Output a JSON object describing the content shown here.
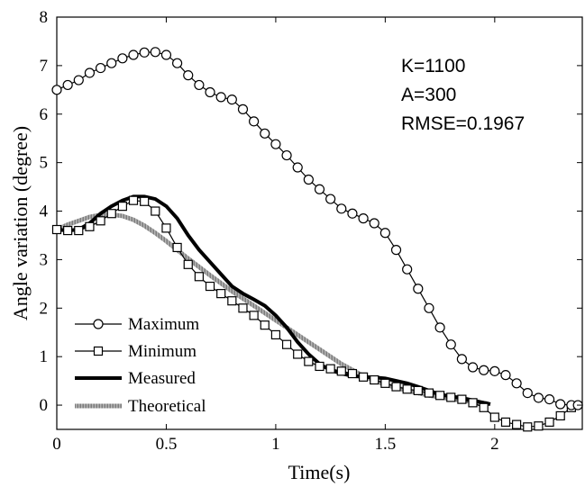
{
  "chart_data": {
    "type": "line",
    "title": "",
    "xlabel": "Time(s)",
    "ylabel": "Angle variation (degree)",
    "xlim": [
      0,
      2.4
    ],
    "ylim": [
      -0.5,
      8
    ],
    "xticks": [
      0,
      0.5,
      1,
      1.5,
      2
    ],
    "xtick_labels": [
      "0",
      "0.5",
      "1",
      "1.5",
      "2"
    ],
    "yticks": [
      0,
      1,
      2,
      3,
      4,
      5,
      6,
      7,
      8
    ],
    "ytick_labels": [
      "0",
      "1",
      "2",
      "3",
      "4",
      "5",
      "6",
      "7",
      "8"
    ],
    "grid": false,
    "legend_position": "bottom-left",
    "annotations": [
      "K=1100",
      "A=300",
      "RMSE=0.1967"
    ],
    "series": [
      {
        "name": "Maximum",
        "style": "thin-line-circle-markers",
        "color": "#000000",
        "points": [
          [
            0,
            6.5
          ],
          [
            0.05,
            6.6
          ],
          [
            0.1,
            6.7
          ],
          [
            0.15,
            6.85
          ],
          [
            0.2,
            6.95
          ],
          [
            0.25,
            7.05
          ],
          [
            0.3,
            7.15
          ],
          [
            0.35,
            7.22
          ],
          [
            0.4,
            7.27
          ],
          [
            0.45,
            7.28
          ],
          [
            0.5,
            7.22
          ],
          [
            0.55,
            7.05
          ],
          [
            0.6,
            6.8
          ],
          [
            0.65,
            6.6
          ],
          [
            0.7,
            6.45
          ],
          [
            0.75,
            6.35
          ],
          [
            0.8,
            6.3
          ],
          [
            0.85,
            6.1
          ],
          [
            0.9,
            5.85
          ],
          [
            0.95,
            5.6
          ],
          [
            1.0,
            5.38
          ],
          [
            1.05,
            5.15
          ],
          [
            1.1,
            4.9
          ],
          [
            1.15,
            4.65
          ],
          [
            1.2,
            4.45
          ],
          [
            1.25,
            4.25
          ],
          [
            1.3,
            4.05
          ],
          [
            1.35,
            3.95
          ],
          [
            1.4,
            3.85
          ],
          [
            1.45,
            3.75
          ],
          [
            1.5,
            3.55
          ],
          [
            1.55,
            3.2
          ],
          [
            1.6,
            2.8
          ],
          [
            1.65,
            2.4
          ],
          [
            1.7,
            2.0
          ],
          [
            1.75,
            1.6
          ],
          [
            1.8,
            1.25
          ],
          [
            1.85,
            0.95
          ],
          [
            1.9,
            0.78
          ],
          [
            1.95,
            0.72
          ],
          [
            2.0,
            0.7
          ],
          [
            2.05,
            0.62
          ],
          [
            2.1,
            0.45
          ],
          [
            2.15,
            0.25
          ],
          [
            2.2,
            0.15
          ],
          [
            2.25,
            0.12
          ],
          [
            2.3,
            0.02
          ],
          [
            2.35,
            0.0
          ],
          [
            2.38,
            0.0
          ]
        ]
      },
      {
        "name": "Minimum",
        "style": "thin-line-square-markers",
        "color": "#000000",
        "points": [
          [
            0,
            3.62
          ],
          [
            0.05,
            3.6
          ],
          [
            0.1,
            3.6
          ],
          [
            0.15,
            3.68
          ],
          [
            0.2,
            3.8
          ],
          [
            0.25,
            3.95
          ],
          [
            0.3,
            4.1
          ],
          [
            0.35,
            4.22
          ],
          [
            0.4,
            4.2
          ],
          [
            0.45,
            4.0
          ],
          [
            0.5,
            3.65
          ],
          [
            0.55,
            3.25
          ],
          [
            0.6,
            2.9
          ],
          [
            0.65,
            2.65
          ],
          [
            0.7,
            2.45
          ],
          [
            0.75,
            2.3
          ],
          [
            0.8,
            2.15
          ],
          [
            0.85,
            2.0
          ],
          [
            0.9,
            1.85
          ],
          [
            0.95,
            1.65
          ],
          [
            1.0,
            1.45
          ],
          [
            1.05,
            1.25
          ],
          [
            1.1,
            1.05
          ],
          [
            1.15,
            0.9
          ],
          [
            1.2,
            0.8
          ],
          [
            1.25,
            0.75
          ],
          [
            1.3,
            0.7
          ],
          [
            1.35,
            0.65
          ],
          [
            1.4,
            0.58
          ],
          [
            1.45,
            0.52
          ],
          [
            1.5,
            0.45
          ],
          [
            1.55,
            0.38
          ],
          [
            1.6,
            0.33
          ],
          [
            1.65,
            0.3
          ],
          [
            1.7,
            0.25
          ],
          [
            1.75,
            0.2
          ],
          [
            1.8,
            0.16
          ],
          [
            1.85,
            0.12
          ],
          [
            1.9,
            0.05
          ],
          [
            1.95,
            -0.05
          ],
          [
            2.0,
            -0.25
          ],
          [
            2.05,
            -0.35
          ],
          [
            2.1,
            -0.4
          ],
          [
            2.15,
            -0.45
          ],
          [
            2.2,
            -0.43
          ],
          [
            2.25,
            -0.35
          ],
          [
            2.3,
            -0.22
          ],
          [
            2.35,
            -0.05
          ]
        ]
      },
      {
        "name": "Measured",
        "style": "thick-solid-line",
        "color": "#000000",
        "points": [
          [
            0,
            3.62
          ],
          [
            0.05,
            3.6
          ],
          [
            0.1,
            3.62
          ],
          [
            0.15,
            3.75
          ],
          [
            0.2,
            3.95
          ],
          [
            0.25,
            4.1
          ],
          [
            0.3,
            4.22
          ],
          [
            0.35,
            4.3
          ],
          [
            0.4,
            4.3
          ],
          [
            0.45,
            4.25
          ],
          [
            0.5,
            4.1
          ],
          [
            0.55,
            3.85
          ],
          [
            0.6,
            3.5
          ],
          [
            0.65,
            3.2
          ],
          [
            0.7,
            2.95
          ],
          [
            0.75,
            2.7
          ],
          [
            0.8,
            2.45
          ],
          [
            0.85,
            2.3
          ],
          [
            0.9,
            2.18
          ],
          [
            0.95,
            2.05
          ],
          [
            1.0,
            1.85
          ],
          [
            1.05,
            1.6
          ],
          [
            1.1,
            1.3
          ],
          [
            1.15,
            1.05
          ],
          [
            1.2,
            0.85
          ],
          [
            1.25,
            0.72
          ],
          [
            1.3,
            0.65
          ],
          [
            1.35,
            0.6
          ],
          [
            1.4,
            0.58
          ],
          [
            1.45,
            0.57
          ],
          [
            1.5,
            0.55
          ],
          [
            1.55,
            0.5
          ],
          [
            1.6,
            0.45
          ],
          [
            1.65,
            0.38
          ],
          [
            1.7,
            0.3
          ],
          [
            1.75,
            0.22
          ],
          [
            1.8,
            0.18
          ],
          [
            1.85,
            0.15
          ],
          [
            1.9,
            0.1
          ],
          [
            1.95,
            0.05
          ],
          [
            1.98,
            0.02
          ]
        ]
      },
      {
        "name": "Theoretical",
        "style": "thick-gray-hatched-line",
        "color": "#8c8c8c",
        "points": [
          [
            0,
            3.62
          ],
          [
            0.05,
            3.72
          ],
          [
            0.1,
            3.8
          ],
          [
            0.15,
            3.88
          ],
          [
            0.2,
            3.92
          ],
          [
            0.25,
            3.93
          ],
          [
            0.3,
            3.9
          ],
          [
            0.35,
            3.82
          ],
          [
            0.4,
            3.7
          ],
          [
            0.45,
            3.55
          ],
          [
            0.5,
            3.38
          ],
          [
            0.6,
            3.02
          ],
          [
            0.7,
            2.68
          ],
          [
            0.8,
            2.35
          ],
          [
            0.9,
            2.05
          ],
          [
            1.0,
            1.75
          ],
          [
            1.1,
            1.45
          ],
          [
            1.2,
            1.15
          ],
          [
            1.3,
            0.85
          ],
          [
            1.4,
            0.6
          ],
          [
            1.5,
            0.42
          ],
          [
            1.6,
            0.3
          ],
          [
            1.7,
            0.2
          ],
          [
            1.8,
            0.13
          ],
          [
            1.9,
            0.07
          ],
          [
            1.97,
            0.03
          ]
        ]
      }
    ]
  }
}
